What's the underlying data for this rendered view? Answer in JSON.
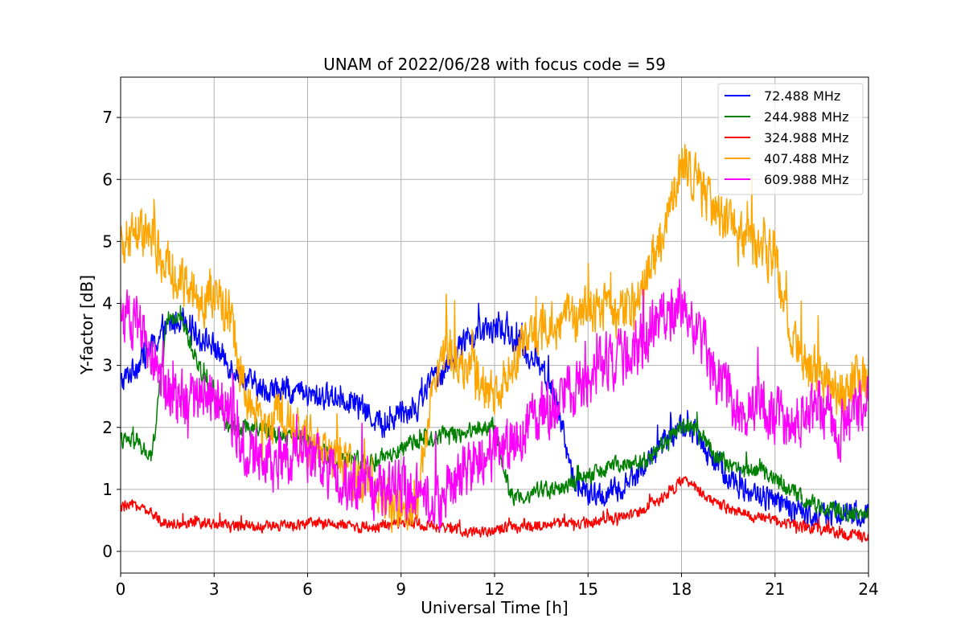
{
  "chart_data": {
    "type": "line",
    "title": "UNAM of 2022/06/28 with focus code = 59",
    "xlabel": "Universal Time [h]",
    "ylabel": "Y-factor [dB]",
    "xlim": [
      0,
      24
    ],
    "ylim": [
      -0.35,
      7.65
    ],
    "xticks": [
      0,
      3,
      6,
      9,
      12,
      15,
      18,
      21,
      24
    ],
    "yticks": [
      0,
      1,
      2,
      3,
      4,
      5,
      6,
      7
    ],
    "grid": true,
    "legend_position": "top-right",
    "series": [
      {
        "name": " 72.488 MHz",
        "color": "#0000ff",
        "x": [
          0,
          0.5,
          1,
          1.5,
          2,
          2.5,
          3,
          3.5,
          4,
          4.5,
          5,
          5.5,
          6,
          6.5,
          7,
          7.5,
          8,
          8.5,
          9,
          9.5,
          10,
          10.5,
          11,
          11.5,
          12,
          12.5,
          13,
          13.5,
          14,
          14.5,
          15,
          15.5,
          16,
          16.5,
          17,
          17.5,
          18,
          18.5,
          19,
          19.5,
          20,
          20.5,
          21,
          21.5,
          22,
          22.5,
          23,
          23.5,
          24
        ],
        "values": [
          2.7,
          3.0,
          3.3,
          3.6,
          3.8,
          3.5,
          3.3,
          3.0,
          2.8,
          2.6,
          2.6,
          2.6,
          2.5,
          2.5,
          2.5,
          2.4,
          2.2,
          2.0,
          2.3,
          2.3,
          2.8,
          3.0,
          3.4,
          3.5,
          3.6,
          3.5,
          3.2,
          3.0,
          2.4,
          1.2,
          0.9,
          0.9,
          1.0,
          1.2,
          1.5,
          1.8,
          2.0,
          1.9,
          1.5,
          1.2,
          1.0,
          0.9,
          0.8,
          0.7,
          0.6,
          0.6,
          0.6,
          0.6,
          0.6
        ],
        "noise": 0.18
      },
      {
        "name": "244.988 MHz",
        "color": "#008000",
        "x": [
          0,
          0.5,
          1,
          1.5,
          2,
          2.5,
          3,
          3.5,
          4,
          4.5,
          5,
          5.5,
          6,
          6.5,
          7,
          7.5,
          8,
          8.5,
          9,
          9.5,
          10,
          10.5,
          11,
          11.5,
          12,
          12.5,
          13,
          13.5,
          14,
          14.5,
          15,
          15.5,
          16,
          16.5,
          17,
          17.5,
          18,
          18.5,
          19,
          19.5,
          20,
          20.5,
          21,
          21.5,
          22,
          22.5,
          23,
          23.5,
          24
        ],
        "values": [
          1.8,
          1.75,
          1.5,
          3.8,
          3.7,
          3.0,
          2.5,
          2.0,
          2.0,
          2.0,
          1.9,
          1.9,
          1.8,
          1.6,
          1.5,
          1.5,
          1.4,
          1.5,
          1.6,
          1.8,
          1.8,
          1.9,
          1.9,
          2.0,
          2.0,
          0.9,
          0.9,
          1.0,
          1.0,
          1.1,
          1.2,
          1.3,
          1.4,
          1.4,
          1.5,
          1.8,
          2.0,
          2.0,
          1.6,
          1.4,
          1.3,
          1.3,
          1.2,
          1.0,
          0.8,
          0.7,
          0.7,
          0.6,
          0.6
        ],
        "noise": 0.12
      },
      {
        "name": "324.988 MHz",
        "color": "#ff0000",
        "x": [
          0,
          0.5,
          1,
          1.5,
          2,
          2.5,
          3,
          3.5,
          4,
          4.5,
          5,
          5.5,
          6,
          6.5,
          7,
          7.5,
          8,
          8.5,
          9,
          9.5,
          10,
          10.5,
          11,
          11.5,
          12,
          12.5,
          13,
          13.5,
          14,
          14.5,
          15,
          15.5,
          16,
          16.5,
          17,
          17.5,
          18,
          18.5,
          19,
          19.5,
          20,
          20.5,
          21,
          21.5,
          22,
          22.5,
          23,
          23.5,
          24
        ],
        "values": [
          0.7,
          0.75,
          0.6,
          0.45,
          0.45,
          0.45,
          0.45,
          0.42,
          0.42,
          0.4,
          0.4,
          0.42,
          0.45,
          0.45,
          0.42,
          0.4,
          0.38,
          0.4,
          0.45,
          0.45,
          0.4,
          0.35,
          0.32,
          0.32,
          0.35,
          0.38,
          0.4,
          0.42,
          0.45,
          0.45,
          0.48,
          0.5,
          0.55,
          0.6,
          0.75,
          0.9,
          1.15,
          1.0,
          0.8,
          0.7,
          0.6,
          0.55,
          0.5,
          0.45,
          0.4,
          0.35,
          0.3,
          0.25,
          0.25
        ],
        "noise": 0.08
      },
      {
        "name": "407.488 MHz",
        "color": "#ffa500",
        "x": [
          0,
          0.5,
          1,
          1.5,
          2,
          2.5,
          3,
          3.5,
          4,
          4.5,
          5,
          5.5,
          6,
          6.5,
          7,
          7.5,
          8,
          8.5,
          9,
          9.5,
          10,
          10.5,
          11,
          11.5,
          12,
          12.5,
          13,
          13.5,
          14,
          14.5,
          15,
          15.5,
          16,
          16.5,
          17,
          17.5,
          18,
          18.5,
          19,
          19.5,
          20,
          20.5,
          21,
          21.5,
          22,
          22.5,
          23,
          23.5,
          24
        ],
        "values": [
          4.8,
          5.2,
          5.0,
          4.6,
          4.3,
          4.0,
          4.2,
          3.8,
          2.5,
          2.0,
          2.2,
          2.0,
          1.8,
          1.6,
          1.5,
          1.2,
          1.0,
          0.8,
          0.6,
          0.6,
          2.8,
          3.2,
          3.0,
          2.8,
          2.5,
          3.0,
          3.3,
          3.5,
          3.7,
          3.8,
          3.9,
          4.0,
          3.8,
          4.0,
          4.6,
          5.3,
          6.3,
          6.0,
          5.5,
          5.2,
          5.0,
          4.8,
          4.8,
          3.5,
          3.0,
          2.8,
          2.6,
          2.6,
          2.8
        ],
        "noise": 0.35
      },
      {
        "name": "609.988 MHz",
        "color": "#ff00ff",
        "x": [
          0,
          0.5,
          1,
          1.5,
          2,
          2.5,
          3,
          3.5,
          4,
          4.5,
          5,
          5.5,
          6,
          6.5,
          7,
          7.5,
          8,
          8.5,
          9,
          9.5,
          10,
          10.5,
          11,
          11.5,
          12,
          12.5,
          13,
          13.5,
          14,
          14.5,
          15,
          15.5,
          16,
          16.5,
          17,
          17.5,
          18,
          18.5,
          19,
          19.5,
          20,
          20.5,
          21,
          21.5,
          22,
          22.5,
          23,
          23.5,
          24
        ],
        "values": [
          3.8,
          3.6,
          3.2,
          2.5,
          2.4,
          2.5,
          2.6,
          2.2,
          1.6,
          1.5,
          1.4,
          1.5,
          1.5,
          1.4,
          1.2,
          1.0,
          1.0,
          1.0,
          1.1,
          1.0,
          0.8,
          1.0,
          1.2,
          1.4,
          1.6,
          1.8,
          2.0,
          2.2,
          2.4,
          2.6,
          2.8,
          3.0,
          3.1,
          3.2,
          3.6,
          3.8,
          4.0,
          3.5,
          3.0,
          2.5,
          2.3,
          2.3,
          2.2,
          2.1,
          2.2,
          2.3,
          2.0,
          2.0,
          2.6
        ],
        "noise": 0.4
      }
    ]
  }
}
